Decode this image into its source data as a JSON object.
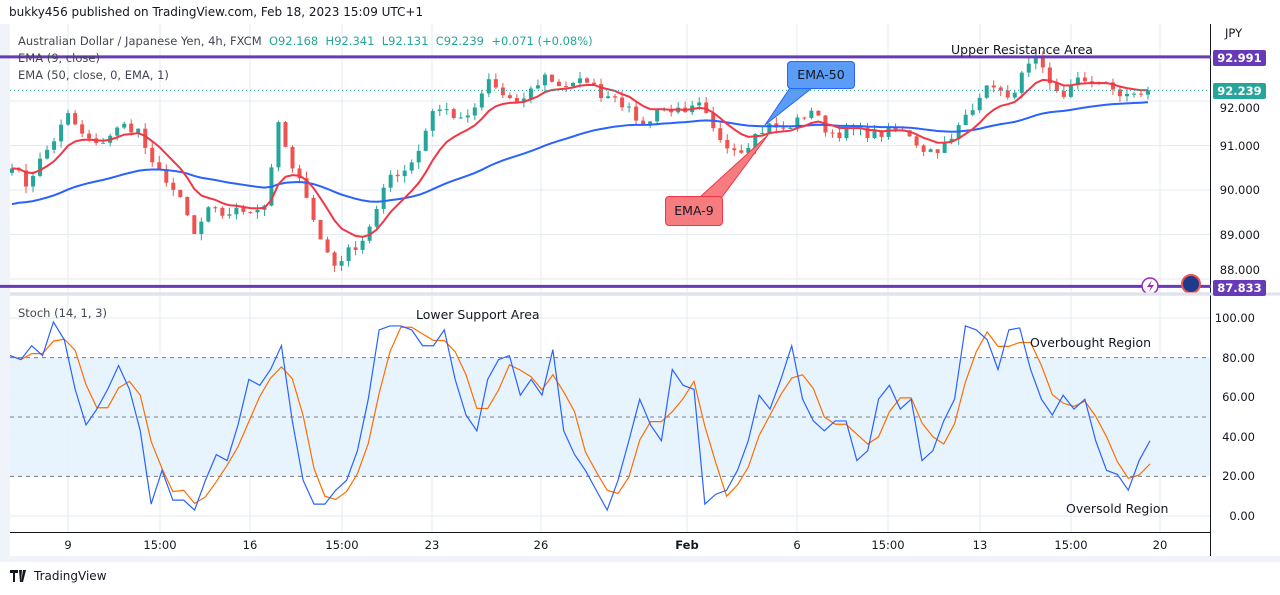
{
  "header": {
    "published": "bukky456 published on TradingView.com, Feb 18, 2023 15:09 UTC+1"
  },
  "legend": {
    "symbol": "Australian Dollar / Japanese Yen, 4h, FXCM",
    "o": "O92.168",
    "h": "H92.341",
    "l": "L92.131",
    "c": "C92.239",
    "change": "+0.071 (+0.08%)",
    "ema9": "EMA (9, close)",
    "ema50": "EMA (50, close, 0, EMA, 1)",
    "stoch": "Stoch (14, 1, 3)"
  },
  "annotations": {
    "upper": "Upper Resistance Area",
    "lower": "Lower Support Area",
    "overbought": "Overbought Region",
    "oversold": "Oversold Region",
    "ema50_callout": "EMA-50",
    "ema9_callout": "EMA-9"
  },
  "price_axis": {
    "currency": "JPY",
    "ticks": [
      "92.000",
      "91.000",
      "90.000",
      "89.000",
      "88.000"
    ],
    "resistance_tag": "92.991",
    "last_tag": "92.239",
    "support_tag": "87.833"
  },
  "stoch_axis": {
    "ticks": [
      "100.00",
      "80.00",
      "60.00",
      "40.00",
      "20.00",
      "0.00"
    ]
  },
  "time_axis": {
    "ticks": [
      "9",
      "15:00",
      "16",
      "15:00",
      "23",
      "26",
      "Feb",
      "6",
      "15:00",
      "13",
      "15:00",
      "20"
    ]
  },
  "footer": {
    "brand": "TradingView"
  },
  "colors": {
    "up": "#26a69a",
    "down": "#ef5350",
    "ema9": "#f23645",
    "ema50": "#2962ff",
    "level": "#673ab7",
    "stochK": "#2962ff",
    "stochD": "#ff6d00",
    "band": "#e3f2fd"
  },
  "chart_data": [
    {
      "type": "candlestick",
      "title": "Australian Dollar / Japanese Yen, 4h, FXCM",
      "ylim": [
        87.6,
        93.4
      ],
      "resistance": 92.991,
      "support": 87.833,
      "last": 92.239,
      "close_path": [
        90.56,
        90.11,
        90.67,
        91.12,
        91.69,
        91.24,
        91.01,
        91.24,
        91.46,
        91.35,
        90.56,
        90.22,
        89.78,
        88.99,
        89.55,
        89.44,
        89.55,
        89.55,
        89.66,
        91.46,
        90.45,
        89.89,
        88.88,
        88.31,
        88.65,
        88.88,
        89.55,
        90.34,
        90.45,
        90.9,
        91.8,
        91.8,
        91.57,
        91.8,
        92.47,
        92.13,
        91.91,
        92.25,
        92.58,
        92.36,
        92.36,
        92.47,
        92.13,
        92.13,
        91.8,
        91.46,
        91.8,
        91.8,
        91.69,
        91.91,
        91.35,
        91.01,
        90.9,
        91.24,
        91.46,
        91.35,
        91.57,
        91.8,
        91.35,
        91.24,
        91.35,
        91.24,
        91.24,
        91.35,
        91.24,
        90.9,
        90.9,
        91.12,
        91.69,
        92.13,
        92.36,
        92.02,
        92.58,
        92.92,
        92.36,
        92.13,
        92.47,
        92.47,
        92.36,
        92.13,
        92.13,
        92.24
      ],
      "indicators": [
        "EMA 9",
        "EMA 50"
      ]
    },
    {
      "type": "line",
      "title": "Stoch (14, 1, 3)",
      "ylim": [
        0,
        100
      ],
      "band": [
        20,
        80
      ],
      "levels": [
        80,
        50,
        20
      ],
      "k": [
        81,
        79,
        86,
        81,
        98,
        89,
        64,
        46,
        54,
        64,
        76,
        64,
        43,
        6,
        23,
        8,
        8,
        3,
        18,
        31,
        28,
        46,
        69,
        66,
        74,
        86,
        48,
        18,
        6,
        6,
        13,
        18,
        33,
        59,
        94,
        96,
        96,
        94,
        86,
        86,
        94,
        69,
        51,
        43,
        69,
        79,
        81,
        61,
        69,
        61,
        84,
        43,
        31,
        23,
        13,
        3,
        18,
        38,
        59,
        46,
        38,
        74,
        66,
        64,
        6,
        11,
        13,
        23,
        38,
        61,
        54,
        69,
        86,
        59,
        48,
        43,
        48,
        48,
        28,
        33,
        59,
        66,
        54,
        59,
        28,
        33,
        48,
        59,
        96,
        94,
        89,
        74,
        94,
        95,
        74,
        59,
        51,
        61,
        54,
        59,
        38,
        23,
        21,
        13,
        28,
        38
      ]
    }
  ]
}
